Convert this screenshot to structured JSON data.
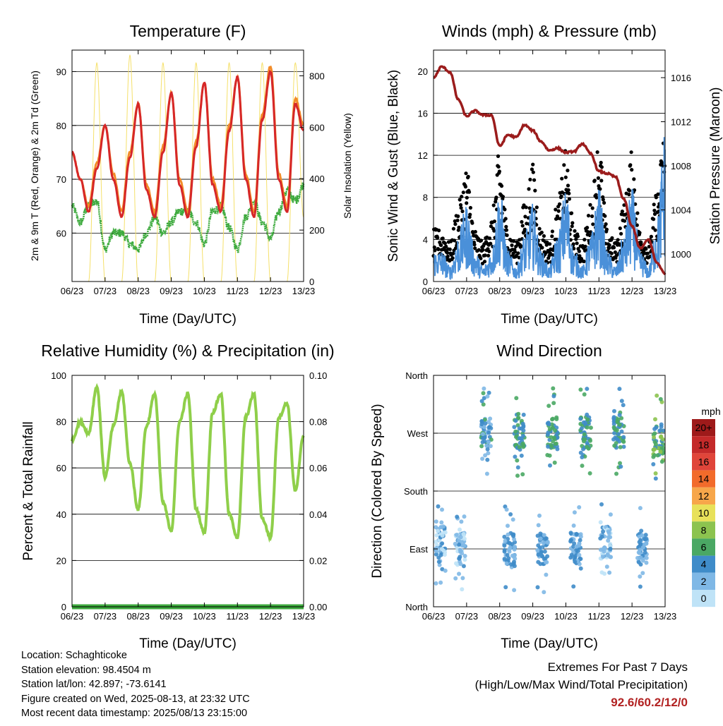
{
  "colors": {
    "temp_2m": "#d62728",
    "temp_9m": "#f28c28",
    "dewpoint": "#3daa3d",
    "insolation": "#f5e06a",
    "wind": "#4a90d9",
    "gust": "#000000",
    "pressure": "#9b1c1c",
    "humidity": "#8fcf4a",
    "precip": "#3daa3d",
    "extremes": "#b22222"
  },
  "x_ticks": [
    "06/23",
    "07/23",
    "08/23",
    "09/23",
    "10/23",
    "11/23",
    "12/23",
    "13/23"
  ],
  "panels": {
    "temperature": {
      "title": "Temperature (F)",
      "ylabel_left": "2m & 9m T (Red, Orange) & 2m Td (Green)",
      "ylabel_right": "Solar Insolation (Yellow)",
      "xlabel": "Time (Day/UTC)"
    },
    "winds": {
      "title": "Winds (mph) & Pressure (mb)",
      "ylabel_left": "Sonic Wind & Gust (Blue, Black)",
      "ylabel_right": "Station Pressure (Maroon)",
      "xlabel": "Time (Day/UTC)"
    },
    "humidity": {
      "title": "Relative Humidity (%) & Precipitation (in)",
      "ylabel_left": "Percent & Total Rainfall",
      "xlabel": "Time (Day/UTC)"
    },
    "direction": {
      "title": "Wind Direction",
      "ylabel_left": "Direction (Colored By Speed)",
      "xlabel": "Time (Day/UTC)",
      "colorbar_unit": "mph",
      "colorbar_labels": [
        "20+",
        "18",
        "16",
        "14",
        "12",
        "10",
        "8",
        "6",
        "4",
        "2",
        "0"
      ],
      "colorbar_colors": [
        "#9e1a1a",
        "#c42a2a",
        "#e0453a",
        "#f26b2b",
        "#f7a64a",
        "#e8e15a",
        "#8cc34f",
        "#4aa864",
        "#3f8cc9",
        "#7fb8e6",
        "#bfe3f7"
      ]
    }
  },
  "chart_data": [
    {
      "type": "line",
      "title": "Temperature (F)",
      "xlabel": "Time (Day/UTC)",
      "ylabel": "2m & 9m T (Red, Orange) & 2m Td (Green)",
      "y2label": "Solar Insolation (Yellow)",
      "x": [
        6.0,
        6.25,
        6.5,
        6.75,
        7.0,
        7.25,
        7.5,
        7.75,
        8.0,
        8.25,
        8.5,
        8.75,
        9.0,
        9.25,
        9.5,
        9.75,
        10.0,
        10.25,
        10.5,
        10.75,
        11.0,
        11.25,
        11.5,
        11.75,
        12.0,
        12.25,
        12.5,
        12.75,
        13.0
      ],
      "ylim": [
        51,
        94
      ],
      "y2lim": [
        0,
        900
      ],
      "y_ticks": [
        60,
        70,
        80,
        90
      ],
      "y2_ticks": [
        0,
        200,
        400,
        600,
        800
      ],
      "series": [
        {
          "name": "2m T",
          "values": [
            75,
            70,
            64,
            72,
            80,
            70,
            63,
            74,
            84,
            68,
            63,
            75,
            86,
            69,
            63,
            76,
            88,
            69,
            64,
            79,
            89,
            70,
            63,
            81,
            90,
            70,
            64,
            84,
            79
          ]
        },
        {
          "name": "9m T",
          "values": [
            75,
            70,
            65,
            73,
            80,
            71,
            64,
            75,
            84,
            69,
            64,
            76,
            86,
            70,
            64,
            77,
            88,
            70,
            65,
            80,
            89,
            71,
            64,
            82,
            91,
            71,
            65,
            85,
            80
          ]
        },
        {
          "name": "2m Td",
          "values": [
            65,
            62,
            65,
            66,
            57,
            60,
            60,
            58,
            57,
            60,
            63,
            60,
            62,
            64,
            64,
            62,
            58,
            64,
            65,
            61,
            57,
            63,
            66,
            62,
            59,
            64,
            68,
            66,
            69
          ]
        },
        {
          "name": "Solar Insolation",
          "axis": "right",
          "values": [
            0,
            0,
            0,
            850,
            0,
            0,
            0,
            880,
            0,
            0,
            0,
            850,
            0,
            0,
            0,
            850,
            0,
            0,
            0,
            850,
            0,
            0,
            0,
            850,
            0,
            0,
            0,
            850,
            250
          ]
        }
      ]
    },
    {
      "type": "line",
      "title": "Winds (mph) & Pressure (mb)",
      "xlabel": "Time (Day/UTC)",
      "ylabel": "Sonic Wind & Gust (Blue, Black)",
      "y2label": "Station Pressure (Maroon)",
      "x": [
        6.0,
        6.25,
        6.5,
        6.75,
        7.0,
        7.25,
        7.5,
        7.75,
        8.0,
        8.25,
        8.5,
        8.75,
        9.0,
        9.25,
        9.5,
        9.75,
        10.0,
        10.25,
        10.5,
        10.75,
        11.0,
        11.25,
        11.5,
        11.75,
        12.0,
        12.25,
        12.5,
        12.75,
        13.0
      ],
      "ylim": [
        0,
        22
      ],
      "y2lim": [
        997.5,
        1018.5
      ],
      "y_ticks": [
        0,
        4,
        8,
        12,
        16,
        20
      ],
      "y2_ticks": [
        1000,
        1004,
        1008,
        1012,
        1016
      ],
      "series": [
        {
          "name": "Sonic Wind",
          "values": [
            2,
            2,
            1,
            3,
            5,
            2,
            1,
            2,
            6,
            2,
            1,
            3,
            5,
            2,
            1,
            3,
            6,
            2,
            1,
            3,
            6,
            2,
            1,
            3,
            6,
            2,
            1,
            4,
            10
          ]
        },
        {
          "name": "Gust",
          "values": [
            4,
            4,
            3,
            6,
            9,
            4,
            3,
            5,
            10,
            4,
            3,
            6,
            9,
            4,
            3,
            6,
            10,
            4,
            3,
            6,
            11,
            4,
            3,
            6,
            10,
            4,
            3,
            7,
            12
          ]
        },
        {
          "name": "Station Pressure",
          "axis": "right",
          "values": [
            1016,
            1017,
            1016.5,
            1014,
            1012.5,
            1013,
            1012.6,
            1012.6,
            1009.8,
            1010.8,
            1010.6,
            1011.7,
            1011.2,
            1010.2,
            1009.4,
            1009.6,
            1009.2,
            1009.3,
            1010.0,
            1009.1,
            1007.5,
            1007.3,
            1007.0,
            1005.0,
            1002.5,
            1000.5,
            1001.3,
            999.2,
            998.2
          ]
        }
      ]
    },
    {
      "type": "line",
      "title": "Relative Humidity (%) & Precipitation (in)",
      "xlabel": "Time (Day/UTC)",
      "ylabel": "Percent & Total Rainfall",
      "x": [
        6.0,
        6.25,
        6.5,
        6.75,
        7.0,
        7.25,
        7.5,
        7.75,
        8.0,
        8.25,
        8.5,
        8.75,
        9.0,
        9.25,
        9.5,
        9.75,
        10.0,
        10.25,
        10.5,
        10.75,
        11.0,
        11.25,
        11.5,
        11.75,
        12.0,
        12.25,
        12.5,
        12.75,
        13.0
      ],
      "ylim": [
        0,
        100
      ],
      "y2lim": [
        0,
        0.1
      ],
      "y_ticks": [
        0,
        20,
        40,
        60,
        80,
        100
      ],
      "y2_ticks": [
        "0.00",
        "0.02",
        "0.04",
        "0.06",
        "0.08",
        "0.10"
      ],
      "series": [
        {
          "name": "Relative Humidity",
          "values": [
            72,
            80,
            75,
            95,
            56,
            78,
            93,
            62,
            42,
            78,
            92,
            45,
            33,
            80,
            92,
            42,
            32,
            84,
            92,
            40,
            30,
            82,
            92,
            38,
            30,
            82,
            88,
            50,
            74
          ]
        },
        {
          "name": "Total Precipitation",
          "axis": "right",
          "values": [
            0,
            0,
            0,
            0,
            0,
            0,
            0,
            0,
            0,
            0,
            0,
            0,
            0,
            0,
            0,
            0,
            0,
            0,
            0,
            0,
            0,
            0,
            0,
            0,
            0,
            0,
            0,
            0,
            0
          ]
        }
      ]
    },
    {
      "type": "scatter",
      "title": "Wind Direction",
      "xlabel": "Time (Day/UTC)",
      "ylabel": "Direction (Colored By Speed)",
      "ylim": [
        0,
        360
      ],
      "y_tick_labels": [
        "North",
        "East",
        "South",
        "West",
        "North"
      ],
      "y_tick_values": [
        0,
        90,
        180,
        270,
        360
      ],
      "colorbar": {
        "unit": "mph",
        "levels": [
          0,
          2,
          4,
          6,
          8,
          10,
          12,
          14,
          16,
          18,
          20
        ]
      },
      "clusters": [
        {
          "x": 6.2,
          "dir": 100,
          "speed": 2
        },
        {
          "x": 6.8,
          "dir": 90,
          "speed": 2
        },
        {
          "x": 7.6,
          "dir": 270,
          "speed": 4
        },
        {
          "x": 8.3,
          "dir": 90,
          "speed": 3
        },
        {
          "x": 8.6,
          "dir": 270,
          "speed": 5
        },
        {
          "x": 9.3,
          "dir": 90,
          "speed": 3
        },
        {
          "x": 9.6,
          "dir": 270,
          "speed": 5
        },
        {
          "x": 10.3,
          "dir": 90,
          "speed": 3
        },
        {
          "x": 10.6,
          "dir": 270,
          "speed": 5
        },
        {
          "x": 11.2,
          "dir": 100,
          "speed": 2
        },
        {
          "x": 11.6,
          "dir": 270,
          "speed": 5
        },
        {
          "x": 12.3,
          "dir": 90,
          "speed": 3
        },
        {
          "x": 12.8,
          "dir": 260,
          "speed": 6
        }
      ]
    }
  ],
  "footer": {
    "location": "Location: Schaghticoke",
    "elevation": "Station elevation: 98.4504 m",
    "latlon": "Station lat/lon: 42.897; -73.6141",
    "created": "Figure created on Wed, 2025-08-13, at 23:32 UTC",
    "recent": "Most recent data timestamp: 2025/08/13 23:15:00"
  },
  "extremes": {
    "title": "Extremes For Past 7 Days",
    "subtitle": "(High/Low/Max Wind/Total Precipitation)",
    "values": "92.6/60.2/12/0"
  }
}
